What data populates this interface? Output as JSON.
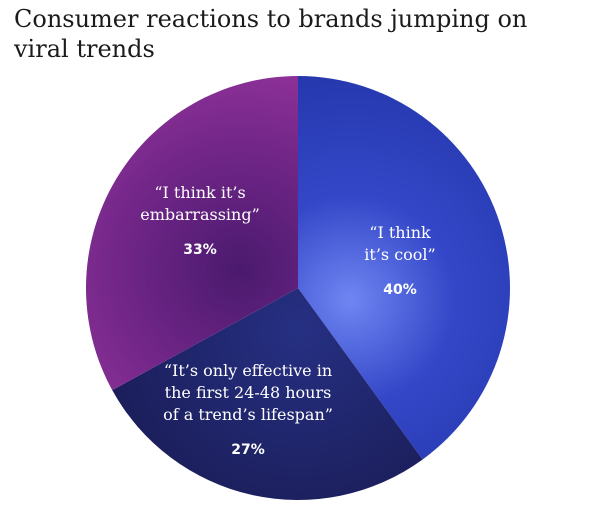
{
  "chart_data": {
    "type": "pie",
    "title": "Consumer reactions to brands jumping on viral trends",
    "slices": [
      {
        "label": [
          "“I think",
          "it’s cool”"
        ],
        "value": 40,
        "value_label": "40%",
        "color": "#2f3fbf"
      },
      {
        "label": [
          "“It’s only effective in",
          "the first 24-48 hours",
          "of a trend’s lifespan”"
        ],
        "value": 27,
        "value_label": "27%",
        "color": "#1d1f5c"
      },
      {
        "label": [
          "“I think it’s",
          "embarrassing”"
        ],
        "value": 33,
        "value_label": "33%",
        "color": "#7d2a8a"
      }
    ]
  }
}
